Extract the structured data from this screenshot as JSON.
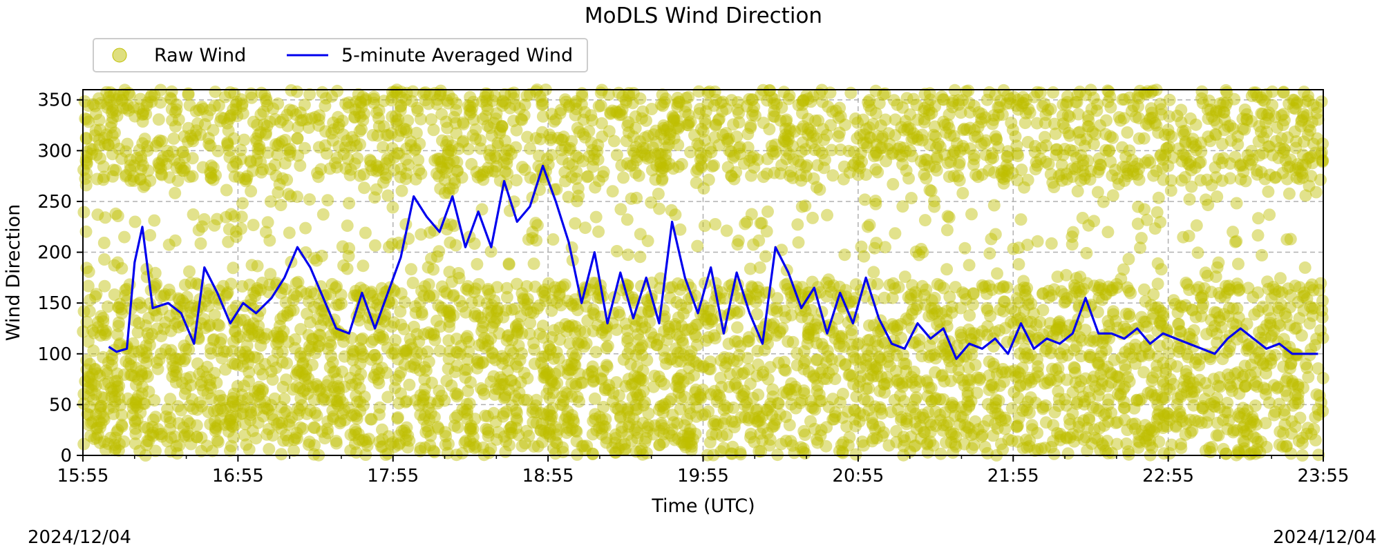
{
  "chart_data": {
    "type": "scatter",
    "title": "MoDLS Wind Direction",
    "xlabel": "Time (UTC)",
    "ylabel": "Wind Direction",
    "xlim": [
      "15:55",
      "23:55"
    ],
    "ylim": [
      0,
      360
    ],
    "x_ticks": [
      "15:55",
      "16:55",
      "17:55",
      "18:55",
      "19:55",
      "20:55",
      "21:55",
      "22:55",
      "23:55"
    ],
    "y_ticks": [
      0,
      50,
      100,
      150,
      200,
      250,
      300,
      350
    ],
    "grid": true,
    "legend_position": "top-left",
    "date_left": "2024/12/04",
    "date_right": "2024/12/04",
    "series": [
      {
        "name": "Raw Wind",
        "kind": "scatter",
        "color": "#bfbf00",
        "note_points": "dense scattered raw samples spanning 0-360 throughout the period",
        "sample_points": [
          [
            "16:00",
            320
          ],
          [
            "16:00",
            60
          ],
          [
            "16:10",
            350
          ],
          [
            "16:10",
            30
          ],
          [
            "16:20",
            300
          ],
          [
            "16:20",
            120
          ],
          [
            "16:40",
            340
          ],
          [
            "16:40",
            80
          ],
          [
            "17:00",
            260
          ],
          [
            "17:00",
            40
          ],
          [
            "17:20",
            330
          ],
          [
            "17:20",
            90
          ],
          [
            "17:40",
            310
          ],
          [
            "17:40",
            20
          ],
          [
            "18:00",
            350
          ],
          [
            "18:00",
            100
          ],
          [
            "18:20",
            280
          ],
          [
            "18:20",
            60
          ],
          [
            "18:40",
            300
          ],
          [
            "18:40",
            10
          ],
          [
            "19:00",
            340
          ],
          [
            "19:00",
            50
          ],
          [
            "19:20",
            260
          ],
          [
            "19:20",
            130
          ],
          [
            "19:40",
            320
          ],
          [
            "19:40",
            70
          ],
          [
            "20:00",
            350
          ],
          [
            "20:00",
            30
          ],
          [
            "20:20",
            240
          ],
          [
            "20:20",
            110
          ],
          [
            "20:40",
            300
          ],
          [
            "20:40",
            60
          ],
          [
            "21:00",
            340
          ],
          [
            "21:00",
            90
          ],
          [
            "21:20",
            200
          ],
          [
            "21:20",
            40
          ],
          [
            "21:40",
            320
          ],
          [
            "21:40",
            120
          ],
          [
            "22:00",
            350
          ],
          [
            "22:00",
            70
          ],
          [
            "22:20",
            260
          ],
          [
            "22:20",
            20
          ],
          [
            "22:40",
            300
          ],
          [
            "22:40",
            100
          ],
          [
            "23:00",
            340
          ],
          [
            "23:00",
            60
          ],
          [
            "23:20",
            220
          ],
          [
            "23:20",
            130
          ],
          [
            "23:40",
            330
          ],
          [
            "23:40",
            40
          ]
        ]
      },
      {
        "name": "5-minute Averaged Wind",
        "kind": "line",
        "color": "#0000ee",
        "points": [
          [
            "16:05",
            107
          ],
          [
            "16:08",
            102
          ],
          [
            "16:12",
            105
          ],
          [
            "16:15",
            190
          ],
          [
            "16:18",
            225
          ],
          [
            "16:22",
            145
          ],
          [
            "16:28",
            150
          ],
          [
            "16:33",
            140
          ],
          [
            "16:38",
            110
          ],
          [
            "16:42",
            185
          ],
          [
            "16:47",
            160
          ],
          [
            "16:52",
            130
          ],
          [
            "16:57",
            150
          ],
          [
            "17:02",
            140
          ],
          [
            "17:08",
            155
          ],
          [
            "17:13",
            175
          ],
          [
            "17:18",
            205
          ],
          [
            "17:23",
            185
          ],
          [
            "17:28",
            155
          ],
          [
            "17:33",
            125
          ],
          [
            "17:38",
            120
          ],
          [
            "17:43",
            160
          ],
          [
            "17:48",
            125
          ],
          [
            "17:53",
            160
          ],
          [
            "17:58",
            195
          ],
          [
            "18:03",
            255
          ],
          [
            "18:08",
            235
          ],
          [
            "18:13",
            220
          ],
          [
            "18:18",
            255
          ],
          [
            "18:23",
            205
          ],
          [
            "18:28",
            240
          ],
          [
            "18:33",
            205
          ],
          [
            "18:38",
            270
          ],
          [
            "18:43",
            230
          ],
          [
            "18:48",
            245
          ],
          [
            "18:53",
            285
          ],
          [
            "18:58",
            250
          ],
          [
            "19:03",
            210
          ],
          [
            "19:08",
            150
          ],
          [
            "19:13",
            200
          ],
          [
            "19:18",
            130
          ],
          [
            "19:23",
            180
          ],
          [
            "19:28",
            135
          ],
          [
            "19:33",
            175
          ],
          [
            "19:38",
            130
          ],
          [
            "19:43",
            230
          ],
          [
            "19:48",
            175
          ],
          [
            "19:53",
            140
          ],
          [
            "19:58",
            185
          ],
          [
            "20:03",
            120
          ],
          [
            "20:08",
            180
          ],
          [
            "20:13",
            140
          ],
          [
            "20:18",
            110
          ],
          [
            "20:23",
            205
          ],
          [
            "20:28",
            180
          ],
          [
            "20:33",
            145
          ],
          [
            "20:38",
            165
          ],
          [
            "20:43",
            120
          ],
          [
            "20:48",
            160
          ],
          [
            "20:53",
            130
          ],
          [
            "20:58",
            175
          ],
          [
            "21:03",
            135
          ],
          [
            "21:08",
            110
          ],
          [
            "21:13",
            105
          ],
          [
            "21:18",
            130
          ],
          [
            "21:23",
            115
          ],
          [
            "21:28",
            125
          ],
          [
            "21:33",
            95
          ],
          [
            "21:38",
            110
          ],
          [
            "21:43",
            105
          ],
          [
            "21:48",
            115
          ],
          [
            "21:53",
            100
          ],
          [
            "21:58",
            130
          ],
          [
            "22:03",
            105
          ],
          [
            "22:08",
            115
          ],
          [
            "22:13",
            110
          ],
          [
            "22:18",
            120
          ],
          [
            "22:23",
            155
          ],
          [
            "22:28",
            120
          ],
          [
            "22:33",
            120
          ],
          [
            "22:38",
            115
          ],
          [
            "22:43",
            125
          ],
          [
            "22:48",
            110
          ],
          [
            "22:53",
            120
          ],
          [
            "22:58",
            115
          ],
          [
            "23:03",
            110
          ],
          [
            "23:08",
            105
          ],
          [
            "23:13",
            100
          ],
          [
            "23:18",
            115
          ],
          [
            "23:23",
            125
          ],
          [
            "23:28",
            115
          ],
          [
            "23:33",
            105
          ],
          [
            "23:38",
            110
          ],
          [
            "23:43",
            100
          ],
          [
            "23:48",
            100
          ],
          [
            "23:53",
            100
          ]
        ]
      }
    ]
  }
}
